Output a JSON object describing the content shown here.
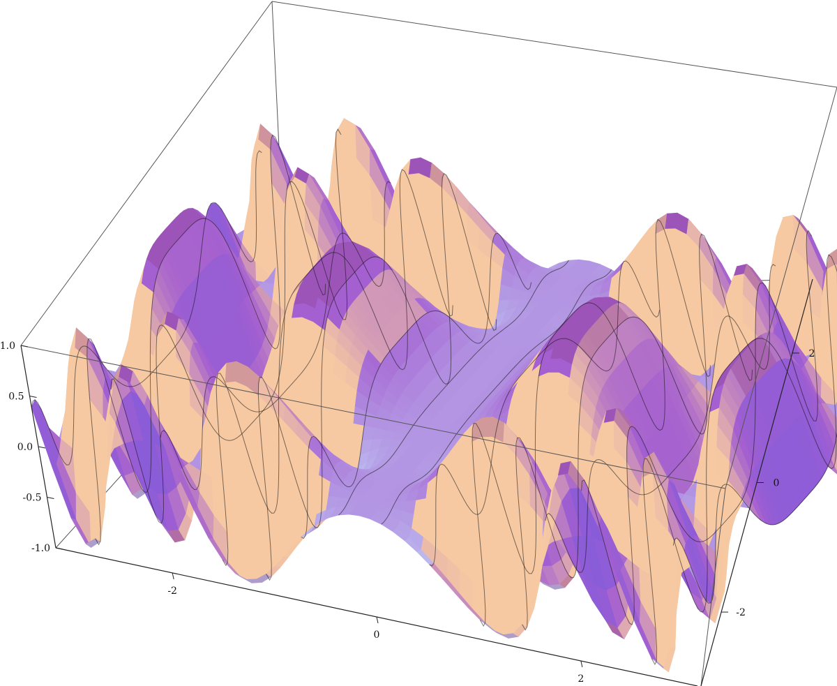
{
  "chart_data": {
    "type": "surface3d",
    "title": "",
    "xlabel": "",
    "ylabel": "",
    "zlabel": "",
    "x_range": [
      -3.14159,
      3.14159
    ],
    "y_range": [
      -3.14159,
      3.14159
    ],
    "z_range": [
      -1.0,
      1.0
    ],
    "x_ticks": [
      {
        "value": -2,
        "label": "-2"
      },
      {
        "value": 0,
        "label": "0"
      },
      {
        "value": 2,
        "label": "2"
      }
    ],
    "y_ticks": [
      {
        "value": -2,
        "label": "-2"
      },
      {
        "value": 0,
        "label": "0"
      },
      {
        "value": 2,
        "label": "2"
      }
    ],
    "z_ticks": [
      {
        "value": 1.0,
        "label": "1.0"
      },
      {
        "value": 0.5,
        "label": "0.5"
      },
      {
        "value": 0.0,
        "label": "0.0"
      },
      {
        "value": -0.5,
        "label": "-0.5"
      },
      {
        "value": -1.0,
        "label": "-1.0"
      }
    ],
    "mesh": "on",
    "box": "on",
    "colors": {
      "surface_peach": "#f7c9a2",
      "surface_violet": "#a45fd0",
      "surface_magenta": "#8e3f8c",
      "surface_light": "#c9e8ff",
      "surface_blue": "#5656e8",
      "mesh_line": "#111111",
      "box_line": "#555555"
    }
  }
}
